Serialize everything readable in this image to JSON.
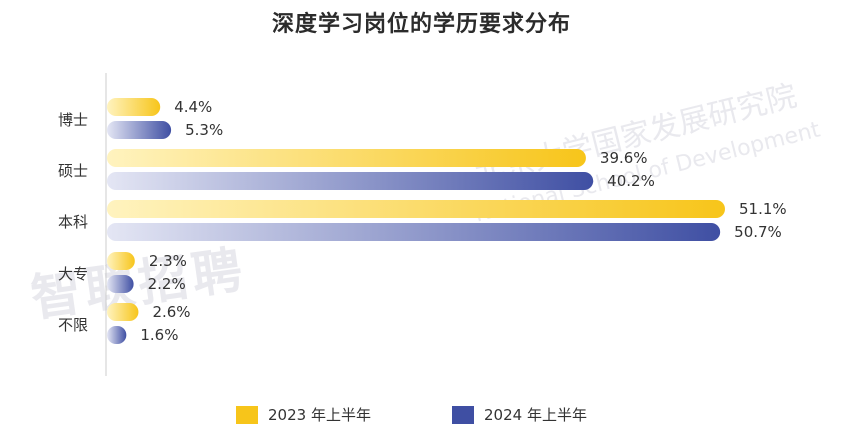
{
  "chart_data": {
    "type": "bar",
    "orientation": "horizontal",
    "title": "深度学习岗位的学历要求分布",
    "categories": [
      "博士",
      "硕士",
      "本科",
      "大专",
      "不限"
    ],
    "series": [
      {
        "name": "2023 年上半年",
        "values": [
          4.4,
          39.6,
          51.1,
          2.3,
          2.6
        ],
        "labels": [
          "4.4%",
          "39.6%",
          "51.1%",
          "2.3%",
          "2.6%"
        ],
        "color": "#F7C51A"
      },
      {
        "name": "2024 年上半年",
        "values": [
          5.3,
          40.2,
          50.7,
          2.2,
          1.6
        ],
        "labels": [
          "5.3%",
          "40.2%",
          "50.7%",
          "2.2%",
          "1.6%"
        ],
        "color": "#3F4FA3"
      }
    ],
    "value_unit": "%",
    "xlim": [
      0,
      55
    ],
    "grid": false,
    "legend_position": "bottom"
  },
  "watermarks": {
    "left": "智联招聘",
    "right_cn": "北京大学国家发展研究院",
    "right_en": "National School of Development"
  }
}
